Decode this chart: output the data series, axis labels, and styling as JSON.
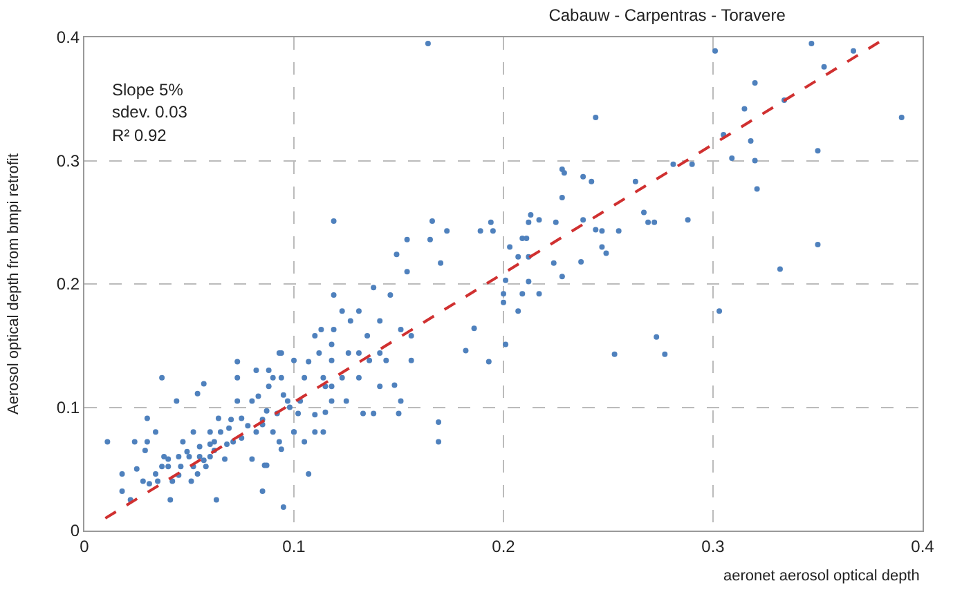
{
  "chart_data": {
    "type": "scatter",
    "title": "Cabauw - Carpentras - Toravere",
    "xlabel": "aeronet aerosol optical depth",
    "ylabel": "Aerosol optical depth from bmpi retrofit",
    "annotations": [
      "Slope 5%",
      "sdev. 0.03",
      "R² 0.92"
    ],
    "xlim": [
      0,
      0.4
    ],
    "xticks": [
      0,
      0.1,
      0.2,
      0.3,
      0.4
    ],
    "ylim": [
      0,
      0.4
    ],
    "yticks": [
      0,
      0.1,
      0.2,
      0.3,
      0.4
    ],
    "grid": true,
    "marker": "circle",
    "series": [
      {
        "color": "#4f81bd",
        "x": [
          0.301,
          0.347,
          0.367,
          0.353,
          0.32,
          0.334,
          0.315,
          0.39,
          0.244,
          0.305,
          0.318,
          0.35,
          0.309,
          0.32,
          0.281,
          0.29,
          0.321,
          0.228,
          0.229,
          0.238,
          0.242,
          0.263,
          0.228,
          0.267,
          0.269,
          0.272,
          0.288,
          0.238,
          0.225,
          0.244,
          0.247,
          0.255,
          0.247,
          0.249,
          0.237,
          0.224,
          0.228,
          0.35,
          0.332,
          0.303,
          0.273,
          0.253,
          0.277,
          0.213,
          0.212,
          0.217,
          0.194,
          0.195,
          0.189,
          0.209,
          0.211,
          0.207,
          0.212,
          0.212,
          0.217,
          0.209,
          0.2,
          0.2,
          0.207,
          0.201,
          0.193,
          0.182,
          0.186,
          0.201,
          0.203,
          0.164,
          0.119,
          0.166,
          0.173,
          0.154,
          0.165,
          0.149,
          0.154,
          0.17,
          0.119,
          0.138,
          0.146,
          0.123,
          0.131,
          0.127,
          0.113,
          0.119,
          0.141,
          0.11,
          0.118,
          0.135,
          0.151,
          0.156,
          0.112,
          0.126,
          0.131,
          0.141,
          0.1,
          0.118,
          0.136,
          0.144,
          0.156,
          0.105,
          0.114,
          0.123,
          0.131,
          0.118,
          0.125,
          0.141,
          0.148,
          0.151,
          0.133,
          0.138,
          0.15,
          0.114,
          0.105,
          0.1,
          0.169,
          0.169,
          0.11,
          0.094,
          0.09,
          0.083,
          0.085,
          0.086,
          0.094,
          0.011,
          0.037,
          0.024,
          0.018,
          0.018,
          0.022,
          0.03,
          0.029,
          0.031,
          0.041,
          0.044,
          0.03,
          0.034,
          0.037,
          0.034,
          0.04,
          0.042,
          0.047,
          0.049,
          0.052,
          0.054,
          0.057,
          0.057,
          0.054,
          0.051,
          0.062,
          0.064,
          0.063,
          0.06,
          0.067,
          0.071,
          0.073,
          0.073,
          0.073,
          0.069,
          0.075,
          0.08,
          0.082,
          0.082,
          0.08,
          0.085,
          0.087,
          0.088,
          0.088,
          0.087,
          0.09,
          0.093,
          0.095,
          0.093,
          0.094,
          0.097,
          0.1,
          0.107,
          0.107,
          0.11,
          0.115,
          0.115,
          0.118,
          0.038,
          0.045,
          0.05,
          0.055,
          0.06,
          0.04,
          0.046,
          0.052,
          0.058,
          0.062,
          0.068,
          0.075,
          0.078,
          0.085,
          0.092,
          0.098,
          0.103,
          0.102,
          0.095,
          0.065,
          0.07,
          0.06,
          0.055,
          0.045,
          0.035,
          0.028,
          0.025
        ],
        "values": [
          0.389,
          0.395,
          0.389,
          0.376,
          0.363,
          0.349,
          0.342,
          0.335,
          0.335,
          0.321,
          0.316,
          0.308,
          0.302,
          0.3,
          0.297,
          0.297,
          0.277,
          0.293,
          0.29,
          0.287,
          0.283,
          0.283,
          0.27,
          0.258,
          0.25,
          0.25,
          0.252,
          0.252,
          0.25,
          0.244,
          0.243,
          0.243,
          0.23,
          0.225,
          0.218,
          0.217,
          0.206,
          0.232,
          0.212,
          0.178,
          0.157,
          0.143,
          0.143,
          0.256,
          0.25,
          0.252,
          0.25,
          0.243,
          0.243,
          0.237,
          0.237,
          0.222,
          0.222,
          0.202,
          0.192,
          0.192,
          0.192,
          0.185,
          0.178,
          0.151,
          0.137,
          0.146,
          0.164,
          0.203,
          0.23,
          0.395,
          0.251,
          0.251,
          0.243,
          0.236,
          0.236,
          0.224,
          0.21,
          0.217,
          0.191,
          0.197,
          0.191,
          0.178,
          0.178,
          0.17,
          0.163,
          0.163,
          0.17,
          0.158,
          0.151,
          0.158,
          0.163,
          0.158,
          0.144,
          0.144,
          0.144,
          0.144,
          0.138,
          0.138,
          0.138,
          0.138,
          0.138,
          0.124,
          0.124,
          0.124,
          0.124,
          0.117,
          0.105,
          0.117,
          0.118,
          0.105,
          0.095,
          0.095,
          0.095,
          0.08,
          0.072,
          0.08,
          0.088,
          0.072,
          0.094,
          0.144,
          0.124,
          0.109,
          0.086,
          0.053,
          0.066,
          0.072,
          0.124,
          0.072,
          0.046,
          0.032,
          0.025,
          0.072,
          0.065,
          0.038,
          0.025,
          0.105,
          0.091,
          0.08,
          0.052,
          0.046,
          0.058,
          0.04,
          0.072,
          0.064,
          0.08,
          0.111,
          0.119,
          0.057,
          0.046,
          0.04,
          0.072,
          0.091,
          0.025,
          0.08,
          0.058,
          0.072,
          0.137,
          0.124,
          0.105,
          0.083,
          0.091,
          0.105,
          0.08,
          0.13,
          0.058,
          0.032,
          0.053,
          0.13,
          0.117,
          0.097,
          0.08,
          0.072,
          0.019,
          0.144,
          0.124,
          0.105,
          0.08,
          0.046,
          0.137,
          0.08,
          0.096,
          0.117,
          0.105,
          0.06,
          0.06,
          0.06,
          0.06,
          0.06,
          0.052,
          0.052,
          0.052,
          0.052,
          0.065,
          0.07,
          0.075,
          0.085,
          0.09,
          0.095,
          0.1,
          0.105,
          0.095,
          0.11,
          0.08,
          0.09,
          0.07,
          0.068,
          0.045,
          0.04,
          0.04,
          0.05
        ]
      },
      {
        "type": "line",
        "color": "#d03030",
        "line_style": "dashed",
        "marker": "none",
        "x": [
          0.01,
          0.383
        ],
        "values": [
          0.01,
          0.4
        ]
      }
    ]
  }
}
